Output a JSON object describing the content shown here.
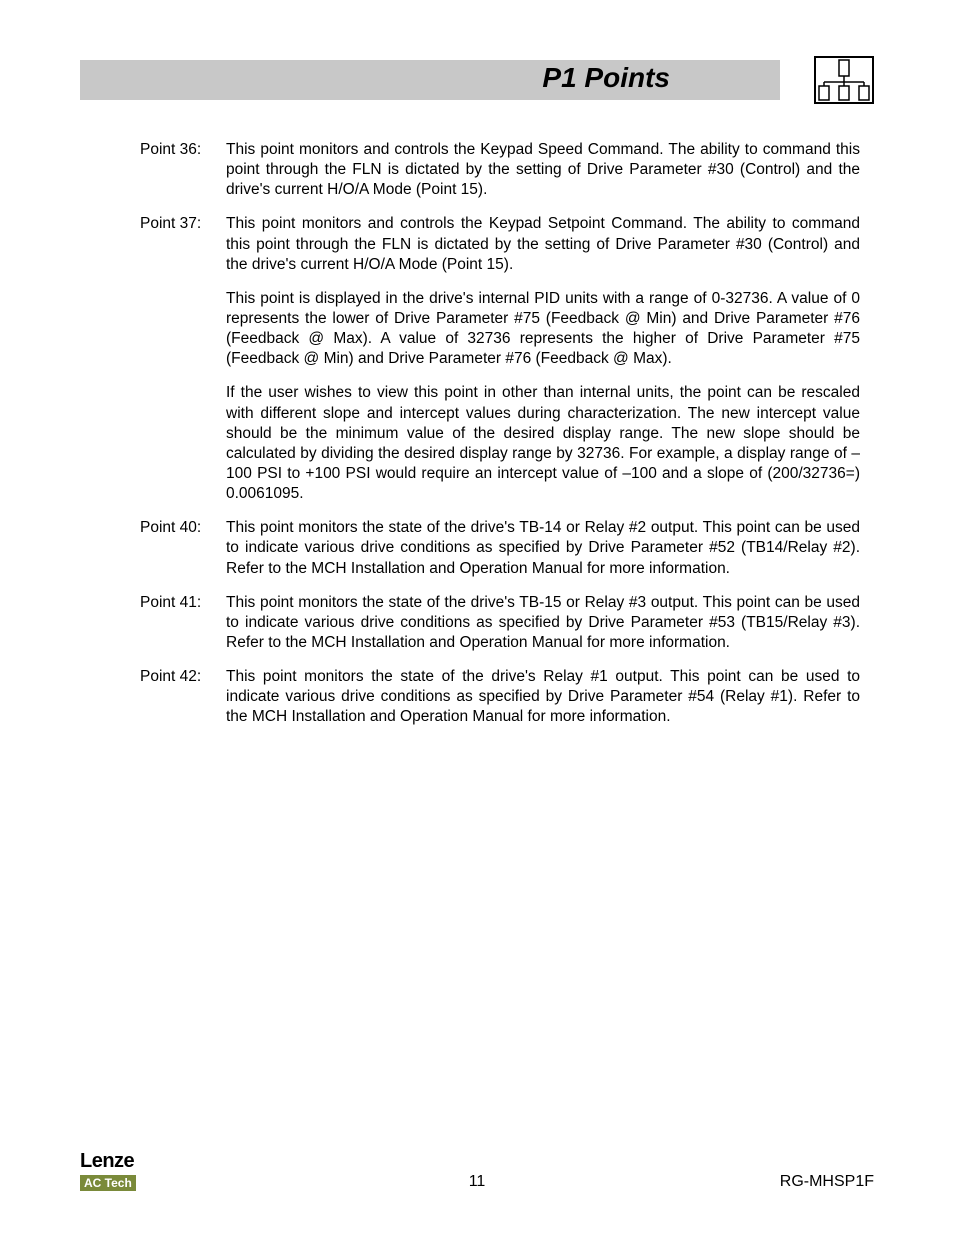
{
  "header": {
    "title": "P1 Points"
  },
  "points": [
    {
      "label": "Point 36:",
      "paragraphs": [
        "This point monitors and controls the Keypad Speed Command. The ability to command this point through the FLN is dictated by the setting of Drive Parameter #30 (Control) and the drive's current H/O/A Mode (Point 15)."
      ]
    },
    {
      "label": "Point 37:",
      "paragraphs": [
        "This point monitors and controls the Keypad Setpoint Command. The ability to command this point through the FLN is dictated by the setting of Drive Parameter #30 (Control) and the drive's current H/O/A Mode (Point 15).",
        "This point is displayed in the drive's internal PID units with a range of 0-32736. A value of 0 represents the lower of Drive Parameter #75 (Feedback @ Min) and Drive Parameter #76 (Feedback @ Max). A value of 32736 represents the higher of Drive Parameter #75 (Feedback @ Min) and Drive Parameter #76 (Feedback @ Max).",
        "If the user wishes to view this point in other than internal units, the point can be rescaled with different slope and intercept values during characterization. The new intercept value should be the minimum value of the desired display range. The new slope should be calculated by dividing the desired display range by 32736. For example, a display range of –100 PSI to +100 PSI would require an intercept value of –100 and a slope of (200/32736=) 0.0061095."
      ]
    },
    {
      "label": "Point 40:",
      "paragraphs": [
        "This point monitors the state of the drive's TB-14 or Relay #2 output. This point can be used to indicate various drive conditions as specified by Drive Parameter #52 (TB14/Relay #2). Refer to the MCH Installation and Operation Manual for more information."
      ]
    },
    {
      "label": "Point 41:",
      "paragraphs": [
        "This point monitors the state of the drive's TB-15 or Relay #3 output. This point can be used to indicate various drive conditions as specified by Drive Parameter #53 (TB15/Relay #3). Refer to the MCH Installation and Operation Manual for more information."
      ]
    },
    {
      "label": "Point 42:",
      "paragraphs": [
        "This point monitors the state of the drive's Relay #1 output. This point can be used to indicate various drive conditions as specified by Drive Parameter #54 (Relay #1). Refer to the MCH Installation and Operation Manual for more information."
      ]
    }
  ],
  "footer": {
    "page_number": "11",
    "doc_code": "RG-MHSP1F",
    "logo_top": "Lenze",
    "logo_bottom": "AC Tech"
  }
}
